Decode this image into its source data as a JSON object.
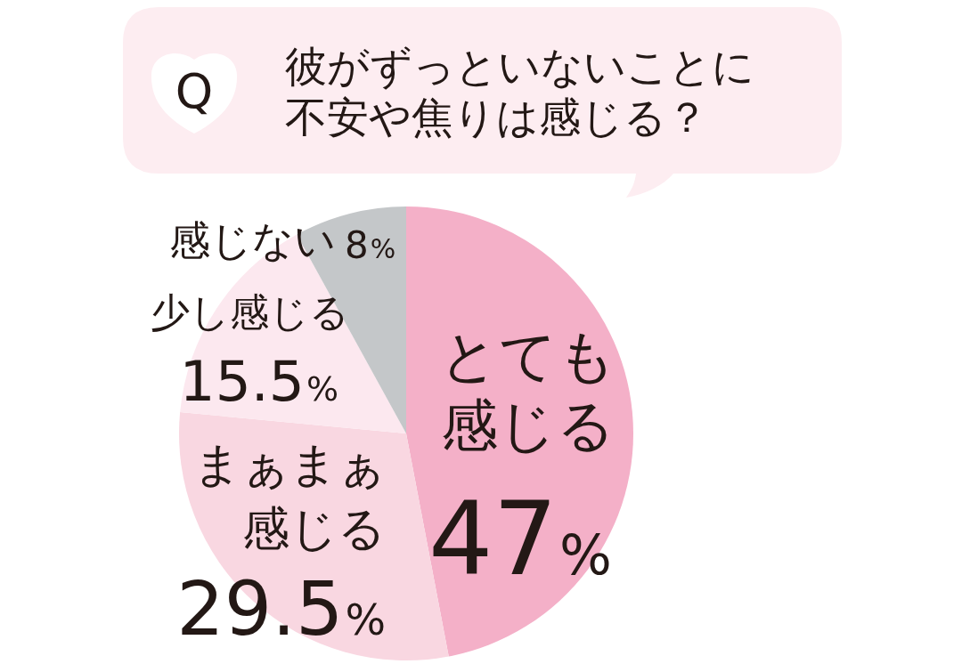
{
  "chart_data": {
    "type": "pie",
    "title": "彼がずっといないことに不安や焦りは感じる？",
    "categories": [
      "とても感じる",
      "まぁまぁ感じる",
      "少し感じる",
      "感じない"
    ],
    "values": [
      47,
      29.5,
      15.5,
      8
    ],
    "colors": [
      "#f4b0c8",
      "#f9d7e1",
      "#fce8ef",
      "#c4c7c9"
    ],
    "value_labels": [
      "47%",
      "29.5%",
      "15.5%",
      "8%"
    ],
    "annotations": [
      "Q"
    ]
  }
}
